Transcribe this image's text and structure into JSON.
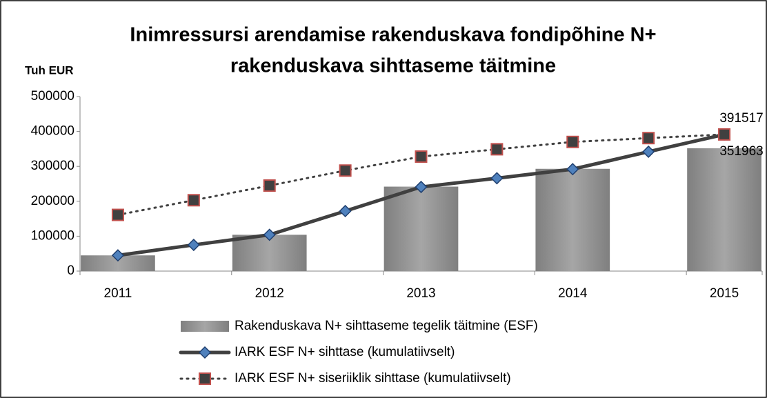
{
  "chart_data": {
    "type": "combo",
    "title": [
      "Inimressursi arendamise rakenduskava fondipõhine N+",
      "rakenduskava sihttaseme täitmine"
    ],
    "y_axis_label": "Tuh EUR",
    "categories": [
      "2011",
      null,
      "2012",
      null,
      "2013",
      null,
      "2014",
      null,
      "2015"
    ],
    "ylim": [
      0,
      500000
    ],
    "yticks": [
      0,
      100000,
      200000,
      300000,
      400000,
      500000
    ],
    "grid": false,
    "legend": "bottom",
    "series": [
      {
        "name": "Rakenduskava N+ sihttaseme tegelik täitmine (ESF)",
        "type": "bar",
        "color": "#8c8c8c",
        "values": [
          45000,
          null,
          104000,
          null,
          242000,
          null,
          293000,
          null,
          351963
        ],
        "label_color": "#ff0000"
      },
      {
        "name": "IARK ESF N+ sihttase (kumulatiivselt)",
        "type": "line",
        "color": "#404040",
        "line_style": "solid",
        "marker": "diamond",
        "marker_color": "#4f81bd",
        "values": [
          45000,
          75000,
          104000,
          172000,
          241000,
          266000,
          292000,
          342000,
          391517
        ],
        "label_color": "#000000"
      },
      {
        "name": "IARK ESF N+ siseriiklik sihttase (kumulatiivselt)",
        "type": "line",
        "color": "#404040",
        "line_style": "dotted",
        "marker": "square",
        "marker_color": "#c0504d",
        "values": [
          161000,
          203000,
          245000,
          288000,
          328000,
          349000,
          370000,
          381000,
          391517
        ]
      }
    ]
  }
}
